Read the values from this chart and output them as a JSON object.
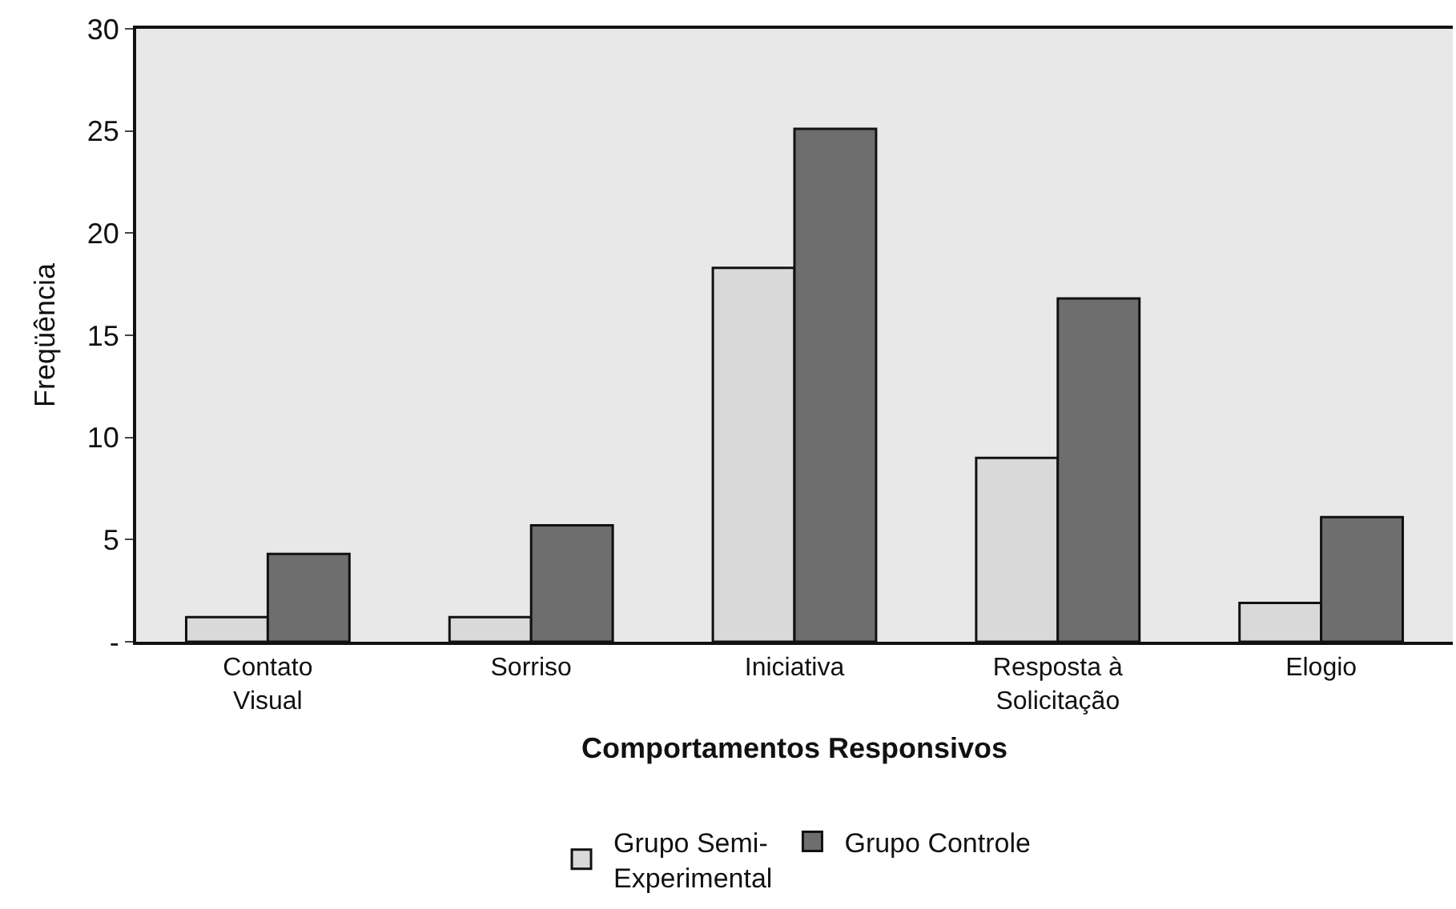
{
  "chart_data": {
    "type": "bar",
    "xlabel": "Comportamentos Responsivos",
    "ylabel": "Freqüência",
    "categories": [
      "Contato Visual",
      "Sorriso",
      "Iniciativa",
      "Resposta à Solicitação",
      "Elogio"
    ],
    "series": [
      {
        "name": "Grupo Semi-Experimental",
        "color": "#d9d9d9",
        "values": [
          1.2,
          1.2,
          18.3,
          9.0,
          1.9
        ]
      },
      {
        "name": "Grupo Controle",
        "color": "#6e6e6e",
        "values": [
          4.3,
          5.7,
          25.1,
          16.8,
          6.1
        ]
      }
    ],
    "ylim": [
      0,
      30
    ],
    "yticks": [
      {
        "value": 0,
        "label": "-"
      },
      5,
      10,
      15,
      20,
      25,
      30
    ],
    "grid": false,
    "legend": "bottom"
  }
}
